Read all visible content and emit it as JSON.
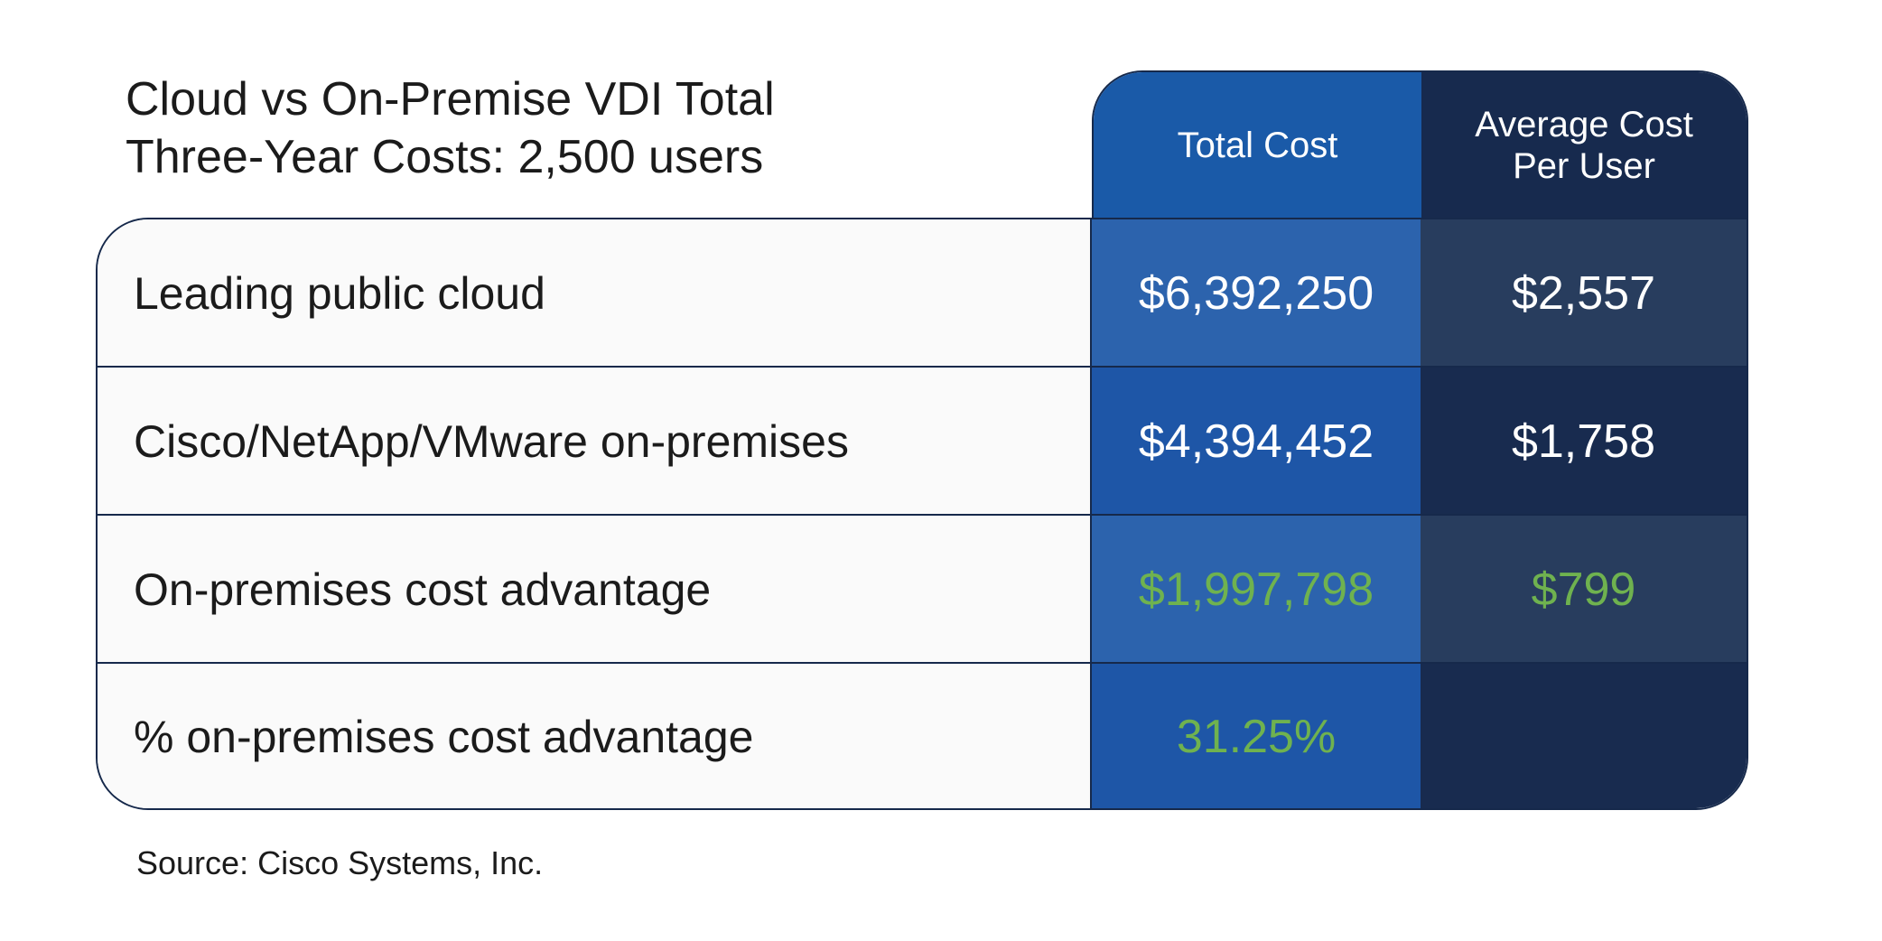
{
  "title_lines": [
    "Cloud vs On-Premise VDI Total",
    "Three-Year Costs: 2,500 users"
  ],
  "columns": {
    "total": "Total Cost",
    "avg_lines": [
      "Average Cost",
      "Per User"
    ]
  },
  "rows": [
    {
      "label": "Leading public cloud",
      "total": "$6,392,250",
      "avg": "$2,557"
    },
    {
      "label": "Cisco/NetApp/VMware on-premises",
      "total": "$4,394,452",
      "avg": "$1,758"
    },
    {
      "label": "On-premises cost advantage",
      "total": "$1,997,798",
      "avg": "$799"
    },
    {
      "label": "% on-premises cost advantage",
      "total": "31.25%",
      "avg": ""
    }
  ],
  "source": "Source: Cisco Systems, Inc.",
  "colors": {
    "header_total": "#1a5aa8",
    "header_avg": "#172a4e",
    "highlight_green": "#6fb24f",
    "border": "#16294b"
  },
  "chart_data": {
    "type": "table",
    "title": "Cloud vs On-Premise VDI Total Three-Year Costs: 2,500 users",
    "columns": [
      "Total Cost",
      "Average Cost Per User"
    ],
    "rows": [
      {
        "label": "Leading public cloud",
        "values": [
          6392250,
          2557
        ]
      },
      {
        "label": "Cisco/NetApp/VMware on-premises",
        "values": [
          4394452,
          1758
        ]
      },
      {
        "label": "On-premises cost advantage",
        "values": [
          1997798,
          799
        ]
      },
      {
        "label": "% on-premises cost advantage",
        "values": [
          31.25,
          null
        ]
      }
    ]
  }
}
